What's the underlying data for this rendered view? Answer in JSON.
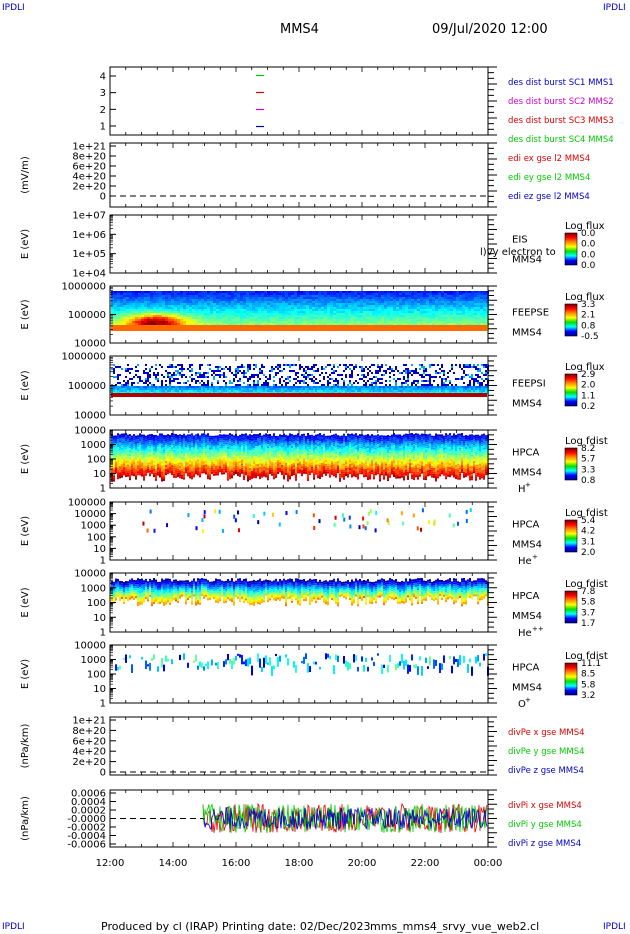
{
  "header": {
    "left_corner": "IPDLI",
    "right_corner": "IPDLI",
    "title": "MMS4",
    "datetime": "09/Jul/2020 12:00"
  },
  "footer": {
    "left_corner": "IPDLI",
    "right_corner": "IPDLI",
    "produced_by": "Produced by cl (IRAP)",
    "printing_date": "Printing date: 02/Dec/2023",
    "script_name": "mms_mms4_srvy_vue_web2.cl"
  },
  "colors": {
    "red": "#e00000",
    "green": "#00cc00",
    "blue": "#0000cc",
    "magenta": "#d000d0",
    "orange": "#ff6a00",
    "dark_red": "#b00000"
  },
  "chart_data": [
    {
      "type": "line",
      "panel": "burst flags",
      "ylabel": "",
      "yticks": [
        "4",
        "3",
        "2",
        "1"
      ],
      "ylim": [
        0.5,
        4.5
      ],
      "legend": [
        "des dist burst SC1 MMS1",
        "des dist burst SC2 MMS2",
        "des dist burst SC3 MMS3",
        "des dist burst SC4 MMS4"
      ],
      "series": [
        {
          "name": "des dist burst SC1 MMS1",
          "color": "#00cc00",
          "y": 4
        },
        {
          "name": "des dist burst SC2 MMS2",
          "color": "#e00000",
          "y": 3
        },
        {
          "name": "des dist burst SC3 MMS3",
          "color": "#d000d0",
          "y": 2
        },
        {
          "name": "des dist burst SC4 MMS4",
          "color": "#0000cc",
          "y": 1
        }
      ]
    },
    {
      "type": "line",
      "panel": "edi electric field",
      "ylabel": "(mV/m)",
      "yticks": [
        "1e+21",
        "8e+20",
        "6e+20",
        "4e+20",
        "2e+20",
        "0"
      ],
      "ylim": [
        0,
        1e+21
      ],
      "legend": [
        "edi ex gse l2 MMS4",
        "edi ey gse l2 MMS4",
        "edi ez gse l2 MMS4"
      ],
      "zero_line": true
    },
    {
      "type": "heatmap",
      "panel": "EIS",
      "ylabel": "E (eV)",
      "yticks": [
        "1e+07",
        "1e+06",
        "1e+05",
        "1e+04"
      ],
      "label_lines": [
        "EIS",
        "MMS4"
      ],
      "overlay_text": "l)vy electron to",
      "colorbar_title": "Log flux",
      "colorbar_ticks": [
        "0.0",
        "0.0",
        "0.0",
        "0.0"
      ]
    },
    {
      "type": "heatmap",
      "panel": "FEEPSE",
      "ylabel": "E (eV)",
      "yticks": [
        "1000000",
        "100000",
        "10000"
      ],
      "label_lines": [
        "FEEPSE",
        "MMS4"
      ],
      "colorbar_title": "Log flux",
      "colorbar_ticks": [
        "3.3",
        "2.1",
        "0.8",
        "-0.5"
      ]
    },
    {
      "type": "heatmap",
      "panel": "FEEPSI",
      "ylabel": "E (eV)",
      "yticks": [
        "1000000",
        "100000",
        "10000"
      ],
      "label_lines": [
        "FEEPSI",
        "MMS4"
      ],
      "colorbar_title": "Log flux",
      "colorbar_ticks": [
        "2.9",
        "2.0",
        "1.1",
        "0.2"
      ]
    },
    {
      "type": "heatmap",
      "panel": "HPCA H+",
      "ylabel": "E (eV)",
      "yticks": [
        "10000",
        "1000",
        "100",
        "10",
        "1"
      ],
      "label_lines": [
        "HPCA",
        "MMS4"
      ],
      "species": "H",
      "species_charge": "+",
      "colorbar_title": "Log fdist",
      "colorbar_ticks": [
        "8.2",
        "5.7",
        "3.3",
        "0.8"
      ]
    },
    {
      "type": "heatmap",
      "panel": "HPCA He+",
      "ylabel": "E (eV)",
      "yticks": [
        "100000",
        "10000",
        "1000",
        "100",
        "10",
        "1"
      ],
      "label_lines": [
        "HPCA",
        "MMS4"
      ],
      "species": "He",
      "species_charge": "+",
      "colorbar_title": "Log fdist",
      "colorbar_ticks": [
        "5.4",
        "4.2",
        "3.1",
        "2.0"
      ]
    },
    {
      "type": "heatmap",
      "panel": "HPCA He++",
      "ylabel": "E (eV)",
      "yticks": [
        "10000",
        "1000",
        "100",
        "10",
        "1"
      ],
      "label_lines": [
        "HPCA",
        "MMS4"
      ],
      "species": "He",
      "species_charge": "++",
      "colorbar_title": "Log fdist",
      "colorbar_ticks": [
        "7.8",
        "5.8",
        "3.7",
        "1.7"
      ]
    },
    {
      "type": "heatmap",
      "panel": "HPCA O+",
      "ylabel": "E (eV)",
      "yticks": [
        "10000",
        "1000",
        "100",
        "10",
        "1"
      ],
      "label_lines": [
        "HPCA",
        "MMS4"
      ],
      "species": "O",
      "species_charge": "+",
      "colorbar_title": "Log fdist",
      "colorbar_ticks": [
        "11.1",
        "8.5",
        "5.8",
        "3.2"
      ]
    },
    {
      "type": "line",
      "panel": "divPe",
      "ylabel": "(nPa/km)",
      "yticks": [
        "1e+21",
        "8e+20",
        "6e+20",
        "4e+20",
        "2e+20",
        "0"
      ],
      "ylim": [
        0,
        1e+21
      ],
      "legend": [
        "divPe x gse MMS4",
        "divPe y gse MMS4",
        "divPe z gse MMS4"
      ],
      "zero_line": true
    },
    {
      "type": "line",
      "panel": "divPi",
      "ylabel": "(nPa/km)",
      "yticks": [
        "0.0006",
        "0.0004",
        "0.0002",
        "-0.0000",
        "-0.0002",
        "-0.0004",
        "-0.0006"
      ],
      "ylim": [
        -0.0007,
        0.0007
      ],
      "legend": [
        "divPi x gse MMS4",
        "divPi y gse MMS4",
        "divPi z gse MMS4"
      ],
      "data_start": "14:55",
      "amplitude": 0.0004
    }
  ],
  "x_axis": {
    "tick_labels": [
      "12:00",
      "14:00",
      "16:00",
      "18:00",
      "20:00",
      "22:00",
      "00:00"
    ]
  }
}
